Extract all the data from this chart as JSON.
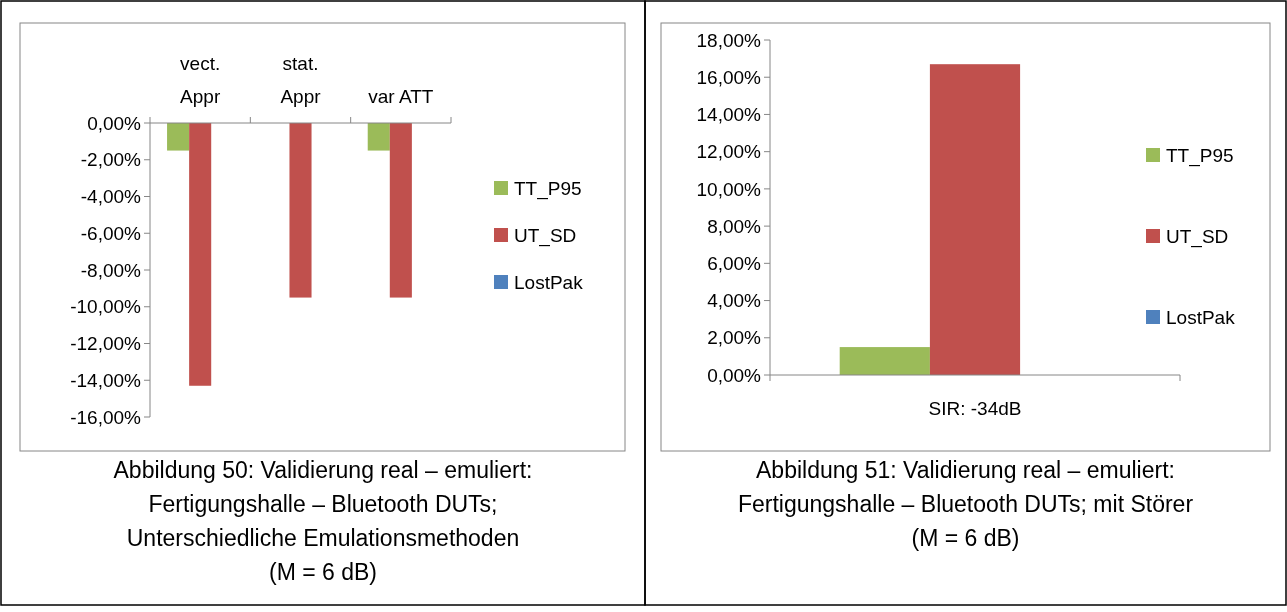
{
  "chart_data": [
    {
      "type": "bar",
      "title": "Abbildung 50: Validierung real – emuliert:\nFertigungshalle – Bluetooth DUTs;\nUnterschiedliche Emulationsmethoden\n(M = 6 dB)",
      "categories": [
        "vect. Appr",
        "stat. Appr",
        "var ATT"
      ],
      "series": [
        {
          "name": "TT_P95",
          "color": "#9bbb59",
          "values": [
            -1.5,
            0,
            -1.5
          ]
        },
        {
          "name": "UT_SD",
          "color": "#c0504d",
          "values": [
            -14.3,
            -9.5,
            -9.5
          ]
        },
        {
          "name": "LostPak",
          "color": "#4f81bd",
          "values": [
            0,
            0,
            0
          ]
        }
      ],
      "ylim": [
        -16,
        0
      ],
      "yticks": [
        {
          "value": -16,
          "label": "-16,00%"
        },
        {
          "value": -14,
          "label": "-14,00%"
        },
        {
          "value": -12,
          "label": "-12,00%"
        },
        {
          "value": -10,
          "label": "-10,00%"
        },
        {
          "value": -8,
          "label": "-8,00%"
        },
        {
          "value": -6,
          "label": "-6,00%"
        },
        {
          "value": -4,
          "label": "-4,00%"
        },
        {
          "value": -2,
          "label": "-2,00%"
        },
        {
          "value": 0,
          "label": "0,00%"
        }
      ],
      "grid": false,
      "legend": "right"
    },
    {
      "type": "bar",
      "title": "Abbildung 51: Validierung real – emuliert:\nFertigungshalle – Bluetooth DUTs; mit Störer\n(M = 6 dB)",
      "categories": [
        "SIR: -34dB"
      ],
      "series": [
        {
          "name": "TT_P95",
          "color": "#9bbb59",
          "values": [
            1.5
          ]
        },
        {
          "name": "UT_SD",
          "color": "#c0504d",
          "values": [
            16.7
          ]
        },
        {
          "name": "LostPak",
          "color": "#4f81bd",
          "values": [
            0
          ]
        }
      ],
      "ylim": [
        0,
        18
      ],
      "yticks": [
        {
          "value": 0,
          "label": "0,00%"
        },
        {
          "value": 2,
          "label": "2,00%"
        },
        {
          "value": 4,
          "label": "4,00%"
        },
        {
          "value": 6,
          "label": "6,00%"
        },
        {
          "value": 8,
          "label": "8,00%"
        },
        {
          "value": 10,
          "label": "10,00%"
        },
        {
          "value": 12,
          "label": "12,00%"
        },
        {
          "value": 14,
          "label": "14,00%"
        },
        {
          "value": 16,
          "label": "16,00%"
        },
        {
          "value": 18,
          "label": "18,00%"
        }
      ],
      "grid": false,
      "legend": "right"
    }
  ]
}
